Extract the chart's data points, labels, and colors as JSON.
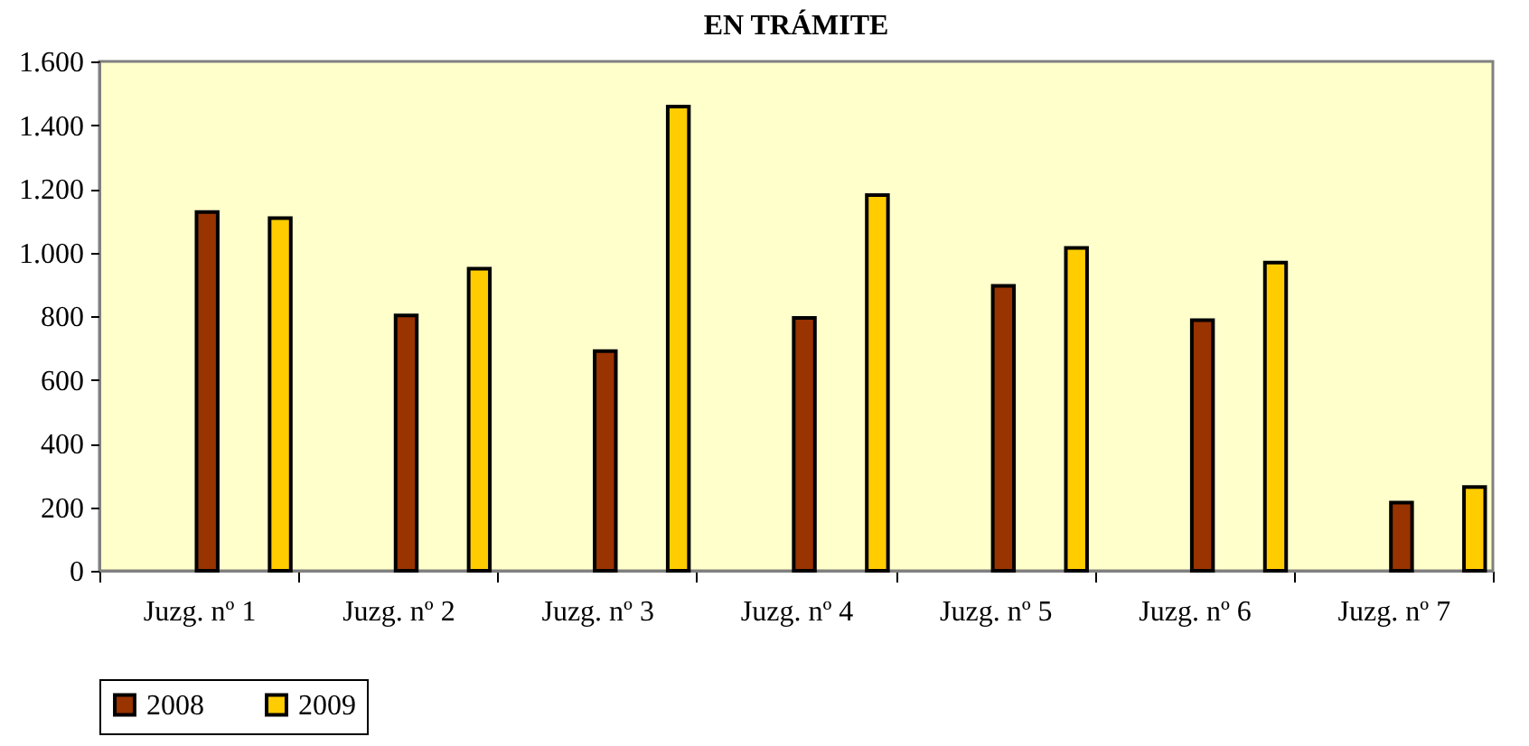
{
  "chart_data": {
    "type": "bar",
    "title": "EN TRÁMITE",
    "categories": [
      "Juzg. nº 1",
      "Juzg. nº 2",
      "Juzg. nº 3",
      "Juzg. nº 4",
      "Juzg. nº 5",
      "Juzg. nº 6",
      "Juzg. nº 7"
    ],
    "series": [
      {
        "name": "2008",
        "color": "#993300",
        "values": [
          1127,
          802,
          690,
          794,
          895,
          787,
          214
        ]
      },
      {
        "name": "2009",
        "color": "#ffcc00",
        "values": [
          1108,
          949,
          1458,
          1180,
          1014,
          968,
          263
        ]
      }
    ],
    "ylim": [
      0,
      1600
    ],
    "yticks": [
      0,
      200,
      400,
      600,
      800,
      {
        "value": 1000,
        "label": "1.000"
      },
      {
        "value": 1200,
        "label": "1.200"
      },
      {
        "value": 1400,
        "label": "1.400"
      },
      {
        "value": 1600,
        "label": "1.600"
      }
    ],
    "legend": "bottom"
  }
}
